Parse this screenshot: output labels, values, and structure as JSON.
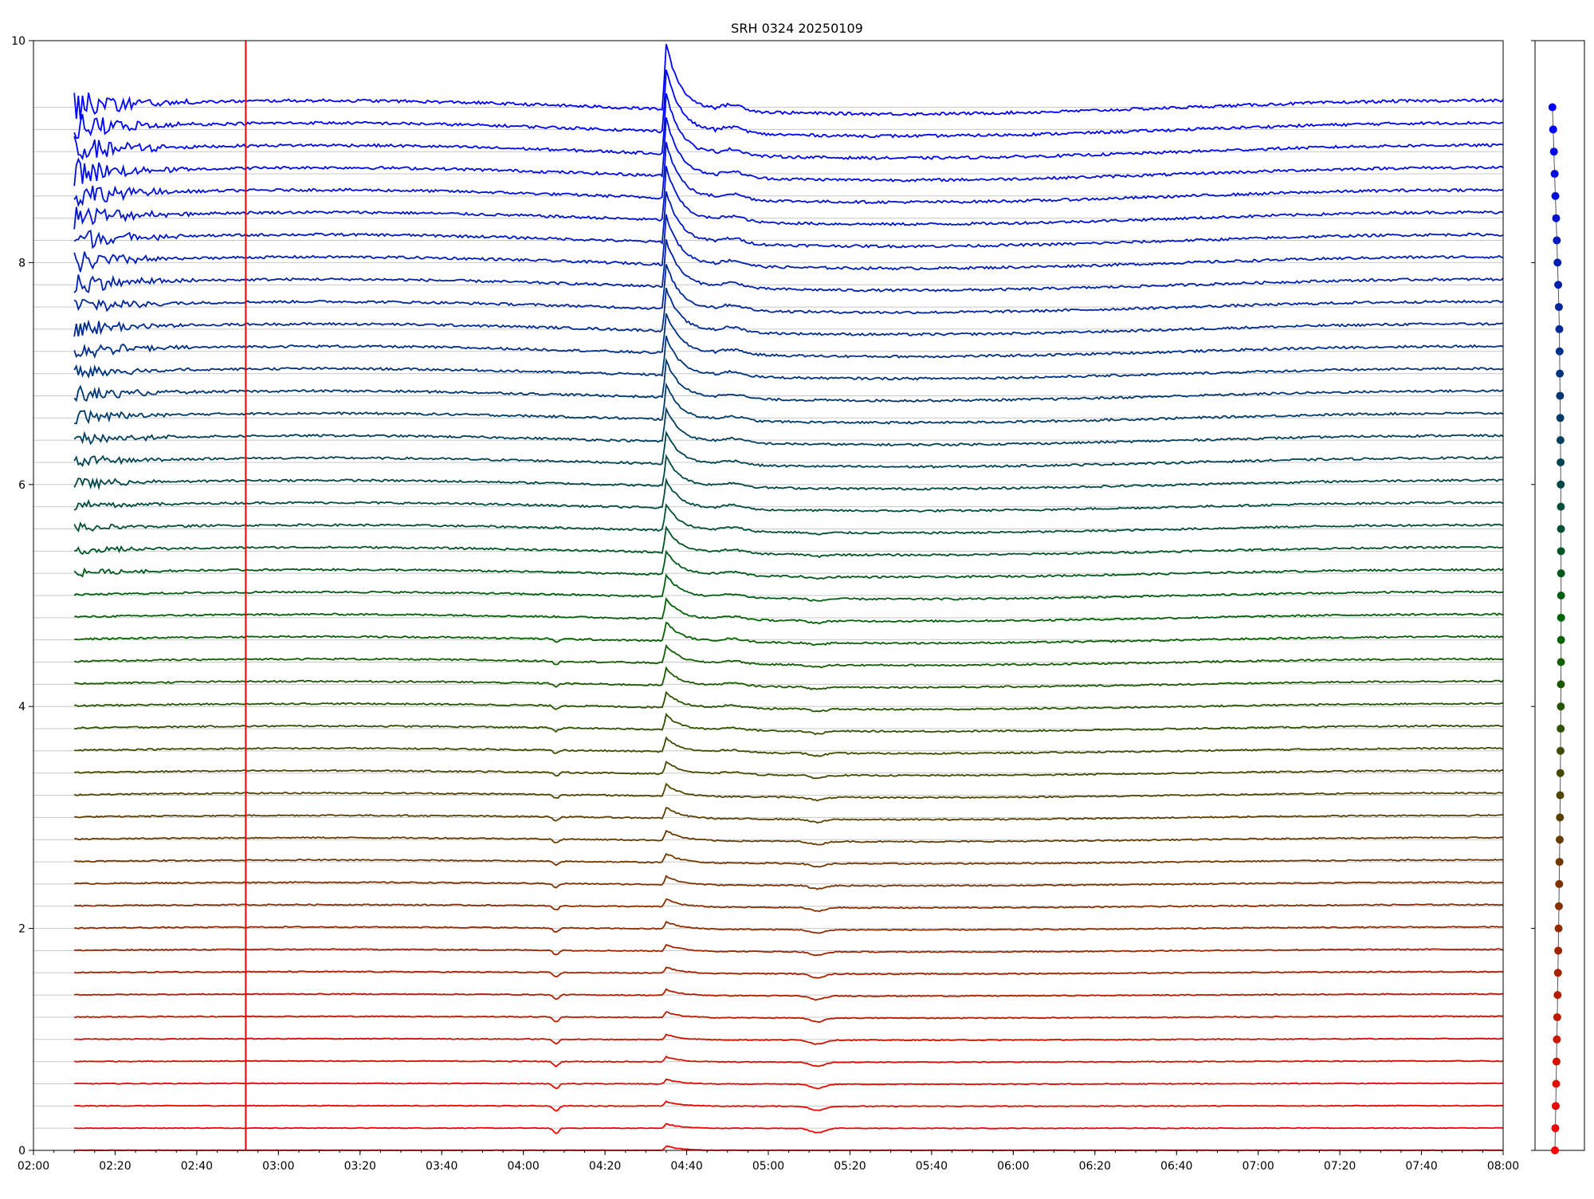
{
  "chart_data": {
    "type": "line",
    "title": "SRH 0324 20250109",
    "xlabel": "",
    "ylabel": "",
    "xlim": [
      "02:00",
      "08:00"
    ],
    "ylim": [
      0,
      10
    ],
    "grid": {
      "x": false,
      "y": true
    },
    "x_ticks": [
      "02:00",
      "02:20",
      "02:40",
      "03:00",
      "03:20",
      "03:40",
      "04:00",
      "04:20",
      "04:40",
      "05:00",
      "05:20",
      "05:40",
      "06:00",
      "06:20",
      "06:40",
      "07:00",
      "07:20",
      "07:40",
      "08:00"
    ],
    "y_ticks": [
      "0",
      "2",
      "4",
      "6",
      "8",
      "10"
    ],
    "traces": {
      "count": 48,
      "baseline_spacing": 0.2,
      "color_top": "#0000ff",
      "color_middle": "#006400",
      "color_bottom": "#ff0000",
      "start_time": "02:10",
      "end_time": "08:00"
    },
    "events": [
      {
        "time": "04:35",
        "description": "impulsive peak visible in most channels"
      },
      {
        "time": "04:51",
        "description": "secondary bump in upper/middle channels"
      },
      {
        "time": "05:12",
        "description": "dip in lower channels"
      },
      {
        "time": "04:08",
        "description": "small dip in lower channels"
      }
    ],
    "vertical_lines": [
      {
        "time": "02:52",
        "color": "#ff0000"
      }
    ],
    "side_panel": {
      "type": "scatter-profile",
      "description": "per-channel baseline markers, colored to match traces"
    }
  }
}
